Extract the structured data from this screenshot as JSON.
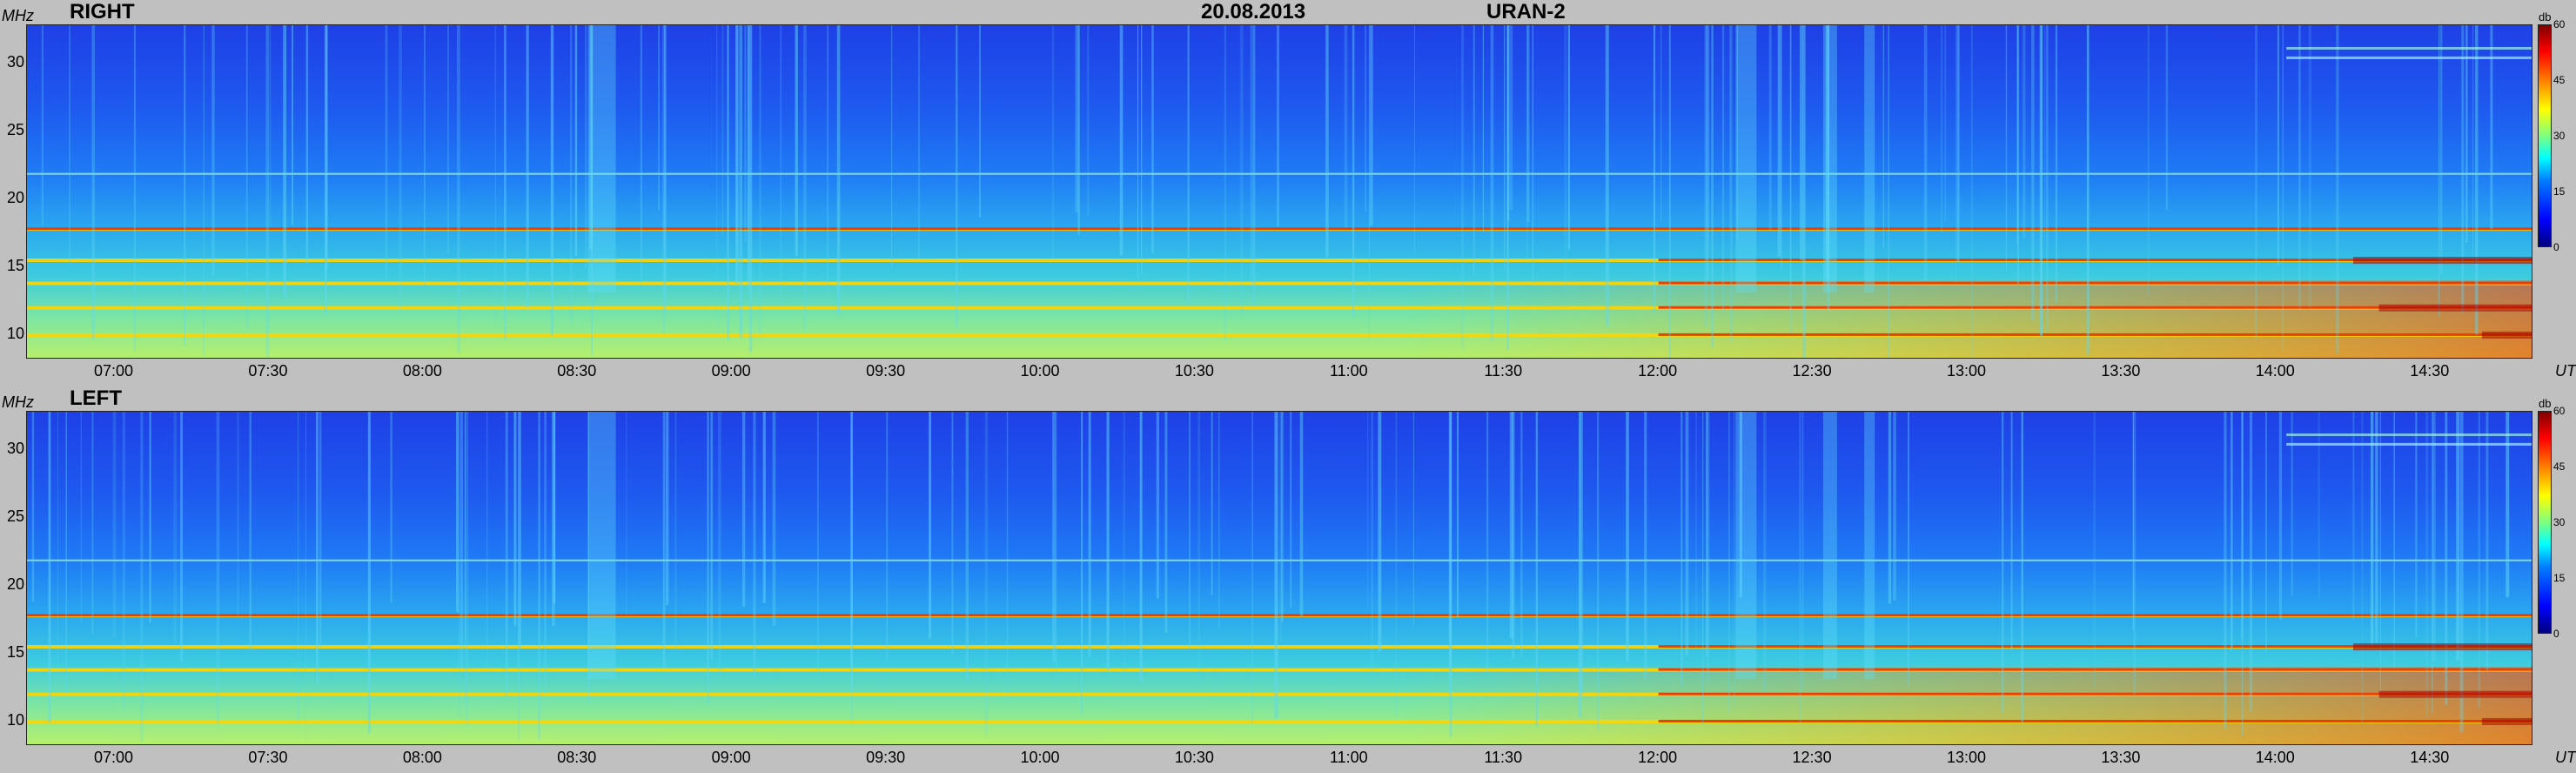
{
  "header": {
    "date": "20.08.2013",
    "instrument": "URAN-2"
  },
  "panels": [
    {
      "label": "RIGHT",
      "freq_unit": "MHz",
      "time_unit": "UT",
      "db_unit": "db"
    },
    {
      "label": "LEFT",
      "freq_unit": "MHz",
      "time_unit": "UT",
      "db_unit": "db"
    }
  ],
  "chart_data": {
    "type": "heatmap",
    "title": "",
    "xlabel": "UT",
    "ylabel": "MHz",
    "x_ticks": [
      "07:00",
      "07:30",
      "08:00",
      "08:30",
      "09:00",
      "09:30",
      "10:00",
      "10:30",
      "11:00",
      "11:30",
      "12:00",
      "12:30",
      "13:00",
      "13:30",
      "14:00",
      "14:30"
    ],
    "x_tick_minutes": [
      420,
      450,
      480,
      510,
      540,
      570,
      600,
      630,
      660,
      690,
      720,
      750,
      780,
      810,
      840,
      870
    ],
    "xlim_minutes": [
      403,
      890
    ],
    "y_ticks": [
      10,
      15,
      20,
      25,
      30
    ],
    "ylim_mhz": [
      8.2,
      32.8
    ],
    "colorbar": {
      "label": "db",
      "ticks": [
        0,
        15,
        30,
        45,
        60
      ],
      "range": [
        0,
        60
      ]
    },
    "colormap": [
      "#00007f",
      "#0000ff",
      "#007fff",
      "#00ffff",
      "#7fff7f",
      "#ffff00",
      "#ff7f00",
      "#ff0000",
      "#7f0000"
    ],
    "series": [
      {
        "name": "RIGHT",
        "persistent_bands_mhz": [
          17.8,
          15.5,
          13.8,
          12.0,
          10.0,
          21.8
        ]
      },
      {
        "name": "LEFT",
        "persistent_bands_mhz": [
          17.8,
          15.5,
          13.8,
          12.0,
          10.0,
          21.8
        ]
      }
    ]
  }
}
